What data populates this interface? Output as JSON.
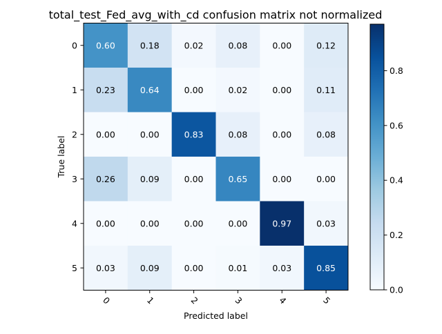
{
  "chart_data": {
    "type": "heatmap",
    "title": "total_test_Fed_avg_with_cd confusion matrix not normalized",
    "xlabel": "Predicted label",
    "ylabel": "True label",
    "x_tick_labels": [
      "0",
      "1",
      "2",
      "3",
      "4",
      "5"
    ],
    "y_tick_labels": [
      "0",
      "1",
      "2",
      "3",
      "4",
      "5"
    ],
    "values": [
      [
        0.6,
        0.18,
        0.02,
        0.08,
        0.0,
        0.12
      ],
      [
        0.23,
        0.64,
        0.0,
        0.02,
        0.0,
        0.11
      ],
      [
        0.0,
        0.0,
        0.83,
        0.08,
        0.0,
        0.08
      ],
      [
        0.26,
        0.09,
        0.0,
        0.65,
        0.0,
        0.0
      ],
      [
        0.0,
        0.0,
        0.0,
        0.0,
        0.97,
        0.03
      ],
      [
        0.03,
        0.09,
        0.0,
        0.01,
        0.03,
        0.85
      ]
    ],
    "value_format": "0.00",
    "colormap": "Blues",
    "colorbar": {
      "min": 0.0,
      "max": 0.97,
      "ticks": [
        0.0,
        0.2,
        0.4,
        0.6,
        0.8
      ],
      "tick_labels": [
        "0.0",
        "0.2",
        "0.4",
        "0.6",
        "0.8"
      ]
    },
    "text_threshold": 0.485,
    "text_color_light": "#ffffff",
    "text_color_dark": "#000000"
  }
}
